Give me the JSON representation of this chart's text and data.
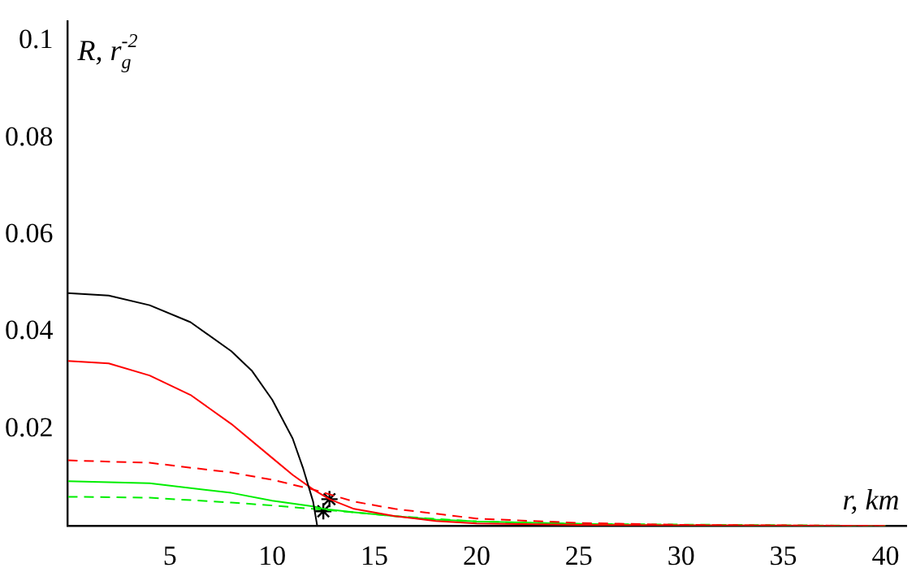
{
  "chart_data": {
    "type": "line",
    "xlabel": "r, km",
    "ylabel": "R, r$_{g}$$^{-2}$",
    "xlim": [
      0,
      41
    ],
    "ylim": [
      0,
      0.104
    ],
    "xticks": [
      5,
      10,
      15,
      20,
      25,
      30,
      35,
      40
    ],
    "yticks": [
      0.02,
      0.04,
      0.06,
      0.08,
      0.1
    ],
    "grid": false,
    "legend": false,
    "marker": "none",
    "series": [
      {
        "color": "#000000",
        "line_style": "solid",
        "x": [
          0,
          2,
          4,
          6,
          8,
          9,
          10,
          11,
          11.5,
          12,
          12.2
        ],
        "values": [
          0.048,
          0.0475,
          0.0455,
          0.042,
          0.036,
          0.032,
          0.026,
          0.018,
          0.012,
          0.005,
          0
        ]
      },
      {
        "color": "#ff0000",
        "line_style": "solid",
        "x": [
          0,
          2,
          4,
          6,
          8,
          10,
          11,
          12,
          12.8,
          14,
          16,
          18,
          20,
          25,
          30,
          40
        ],
        "values": [
          0.034,
          0.0335,
          0.031,
          0.027,
          0.021,
          0.014,
          0.0105,
          0.0075,
          0.0055,
          0.0035,
          0.002,
          0.001,
          0.0005,
          0.0002,
          0.0001,
          0
        ]
      },
      {
        "color": "#ff0000",
        "line_style": "dashed",
        "x": [
          0,
          4,
          8,
          10,
          12,
          12.8,
          14,
          16,
          18,
          20,
          25,
          30,
          40
        ],
        "values": [
          0.0135,
          0.013,
          0.011,
          0.0095,
          0.0075,
          0.0065,
          0.005,
          0.0035,
          0.0025,
          0.0015,
          0.0006,
          0.0002,
          0
        ]
      },
      {
        "color": "#00ee00",
        "line_style": "solid",
        "x": [
          0,
          4,
          8,
          10,
          12,
          12.5,
          14,
          16,
          18,
          20,
          25,
          30,
          40
        ],
        "values": [
          0.0092,
          0.0088,
          0.0068,
          0.0052,
          0.004,
          0.0035,
          0.0028,
          0.002,
          0.0013,
          0.0009,
          0.0004,
          0.0001,
          0
        ]
      },
      {
        "color": "#00ee00",
        "line_style": "dashed",
        "x": [
          0,
          4,
          8,
          10,
          12,
          14,
          16,
          20,
          25,
          40
        ],
        "values": [
          0.006,
          0.0058,
          0.0048,
          0.0042,
          0.0035,
          0.0028,
          0.002,
          0.0009,
          0.0004,
          0
        ]
      },
      {
        "type": "scatter",
        "color": "#000000",
        "marker": "cross",
        "x": [
          12.8,
          12.5
        ],
        "values": [
          0.0055,
          0.003
        ]
      }
    ]
  }
}
